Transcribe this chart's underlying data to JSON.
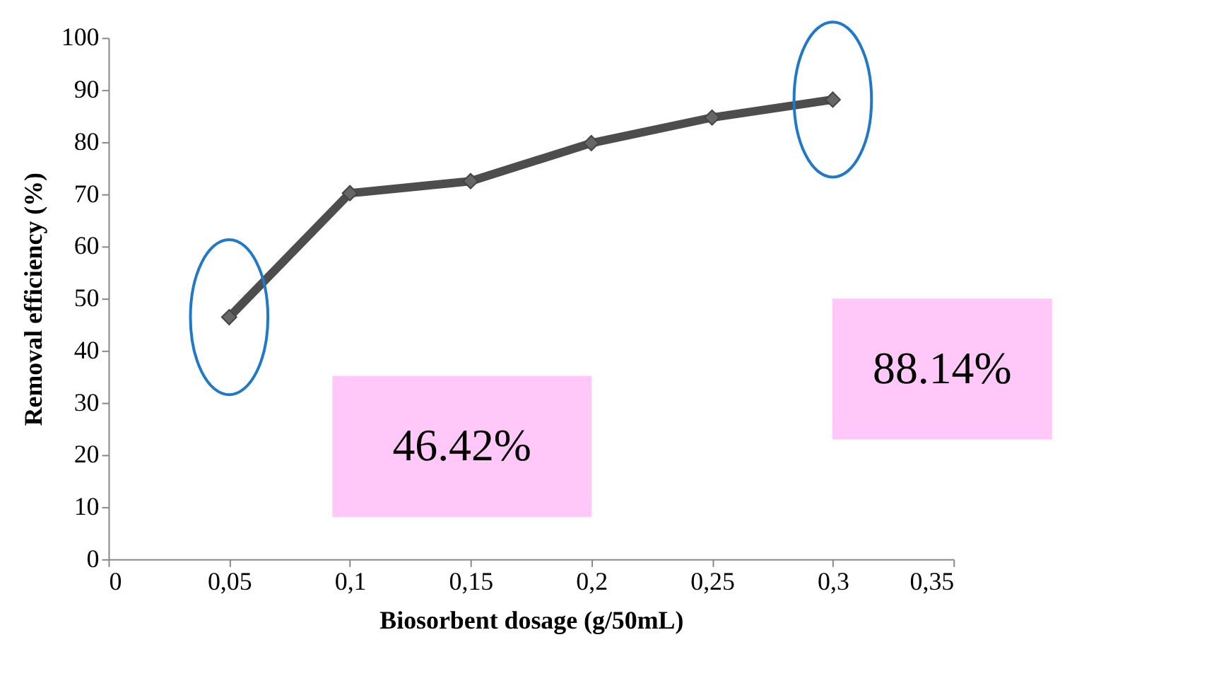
{
  "chart_data": {
    "type": "line",
    "xlabel": "Biosorbent dosage (g/50mL)",
    "ylabel": "Removal efficiency (%)",
    "x": [
      0.05,
      0.1,
      0.15,
      0.2,
      0.25,
      0.3
    ],
    "series": [
      {
        "color": "#4d4d4d",
        "values": [
          46.42,
          70.2,
          72.5,
          79.8,
          84.7,
          88.14
        ]
      }
    ],
    "marker": "diamond",
    "line_style": "solid",
    "grid": false,
    "xlim": [
      0,
      0.35
    ],
    "ylim": [
      0,
      100
    ],
    "xticks": [
      0,
      {
        "value": 0.05,
        "label": "0,05"
      },
      {
        "value": 0.1,
        "label": "0,1"
      },
      {
        "value": 0.15,
        "label": "0,15"
      },
      {
        "value": 0.2,
        "label": "0,2"
      },
      {
        "value": 0.25,
        "label": "0,25"
      },
      {
        "value": 0.3,
        "label": "0,3"
      },
      {
        "value": 0.35,
        "label": "0,35"
      }
    ],
    "yticks": [
      0,
      10,
      20,
      30,
      40,
      50,
      60,
      70,
      80,
      90,
      100
    ],
    "annotations": [
      "46.42%",
      "88.14%"
    ]
  }
}
